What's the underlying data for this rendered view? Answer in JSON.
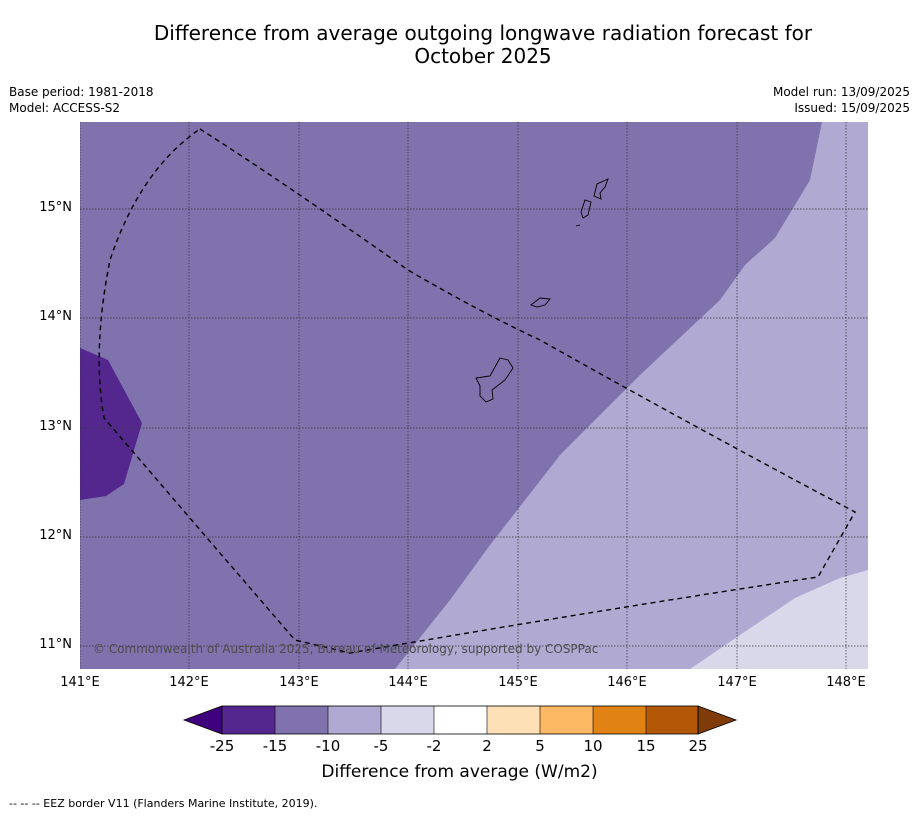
{
  "title_line1": "Difference from average outgoing longwave radiation forecast for",
  "title_line2": "October 2025",
  "meta_left": {
    "base_period": "Base period: 1981-2018",
    "model": "Model: ACCESS-S2"
  },
  "meta_right": {
    "model_run": "Model run: 13/09/2025",
    "issued": "Issued: 15/09/2025"
  },
  "map": {
    "extent": {
      "lon_min": 141.0,
      "lon_max": 148.2,
      "lat_min": 10.8,
      "lat_max": 15.8
    },
    "lat_ticks": [
      {
        "value": 15,
        "label": "15°N"
      },
      {
        "value": 14,
        "label": "14°N"
      },
      {
        "value": 13,
        "label": "13°N"
      },
      {
        "value": 12,
        "label": "12°N"
      },
      {
        "value": 11,
        "label": "11°N"
      }
    ],
    "lon_ticks": [
      {
        "value": 141,
        "label": "141°E"
      },
      {
        "value": 142,
        "label": "142°E"
      },
      {
        "value": 143,
        "label": "143°E"
      },
      {
        "value": 144,
        "label": "144°E"
      },
      {
        "value": 145,
        "label": "145°E"
      },
      {
        "value": 146,
        "label": "146°E"
      },
      {
        "value": 147,
        "label": "147°E"
      },
      {
        "value": 148,
        "label": "148°E"
      }
    ],
    "gridlines": true,
    "colors": {
      "band_minus25_minus15": "#54278f",
      "band_minus15_minus10": "#7f72ad",
      "band_minus10_minus5": "#b0a9d1",
      "band_minus5_minus2": "#d9d8eb"
    },
    "copyright": "© Commonwealth of Australia 2025, Bureau of Meteorology, supported by COSPPac"
  },
  "colorbar": {
    "title": "Difference from average (W/m2)",
    "labels": [
      "-25",
      "-15",
      "-10",
      "-5",
      "-2",
      "2",
      "5",
      "10",
      "15",
      "25"
    ],
    "colors": [
      "#3f007d",
      "#54278f",
      "#7f72ad",
      "#b0a9d1",
      "#d9d8eb",
      "#ffffff",
      "#fee0b6",
      "#fdb863",
      "#e08214",
      "#b35806",
      "#7f3b08"
    ]
  },
  "footnote": "--  --  -- EEZ border V11 (Flanders Marine Institute, 2019)."
}
